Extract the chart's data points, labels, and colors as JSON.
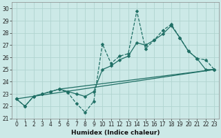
{
  "xlabel": "Humidex (Indice chaleur)",
  "bg_color": "#cce9e7",
  "grid_color": "#b0d4d0",
  "line_color": "#1e6e64",
  "xlim": [
    -0.5,
    23.5
  ],
  "ylim": [
    21,
    30.5
  ],
  "xticks": [
    0,
    1,
    2,
    3,
    4,
    5,
    6,
    7,
    8,
    9,
    10,
    11,
    12,
    13,
    14,
    15,
    16,
    17,
    18,
    19,
    20,
    21,
    22,
    23
  ],
  "yticks": [
    21,
    22,
    23,
    24,
    25,
    26,
    27,
    28,
    29,
    30
  ],
  "dashed_x": [
    0,
    1,
    2,
    3,
    4,
    5,
    6,
    7,
    8,
    9,
    10,
    11,
    12,
    13,
    14,
    15,
    16,
    17,
    18,
    19,
    20,
    21,
    22,
    23
  ],
  "dashed_y": [
    22.6,
    22.0,
    22.8,
    23.0,
    23.2,
    23.4,
    23.1,
    22.2,
    21.5,
    22.4,
    27.1,
    25.5,
    26.1,
    26.3,
    29.8,
    26.7,
    27.4,
    28.2,
    28.7,
    27.6,
    26.5,
    25.9,
    25.8,
    25.0
  ],
  "solid_x": [
    0,
    1,
    2,
    3,
    4,
    5,
    6,
    7,
    8,
    9,
    10,
    11,
    12,
    13,
    14,
    15,
    16,
    17,
    18,
    19,
    20,
    21,
    22,
    23
  ],
  "solid_y": [
    22.6,
    22.0,
    22.8,
    23.0,
    23.2,
    23.4,
    23.2,
    23.0,
    22.8,
    23.2,
    25.0,
    25.3,
    25.8,
    26.1,
    27.2,
    27.0,
    27.4,
    27.9,
    28.6,
    27.6,
    26.5,
    25.9,
    25.0,
    25.0
  ],
  "trend1_x": [
    0,
    23
  ],
  "trend1_y": [
    22.6,
    25.0
  ],
  "trend2_x": [
    5,
    23
  ],
  "trend2_y": [
    23.4,
    25.0
  ],
  "line_width": 0.9,
  "marker_size": 2.5
}
